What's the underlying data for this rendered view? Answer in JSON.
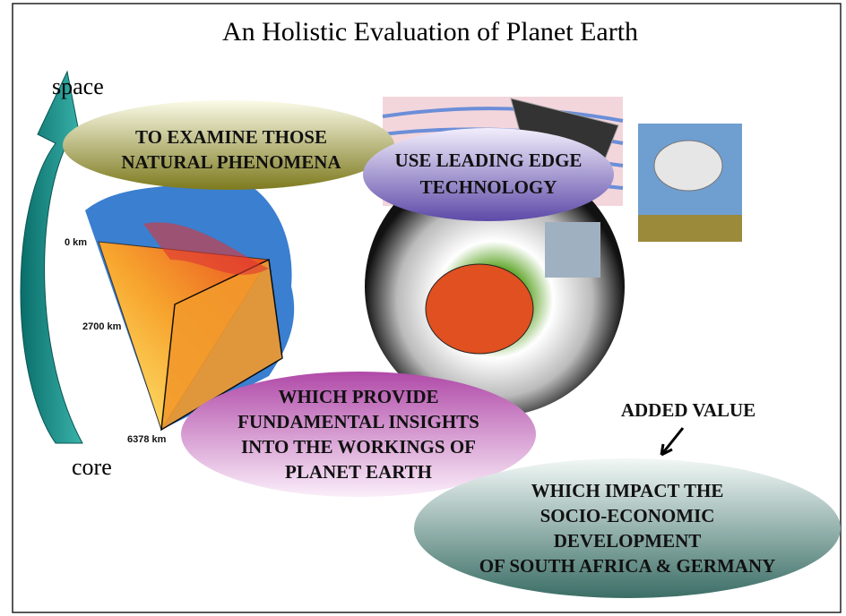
{
  "title": "An Holistic Evaluation of Planet Earth",
  "axis_labels": {
    "top": "space",
    "bottom": "core"
  },
  "depth_labels": [
    "0 km",
    "2700 km",
    "6378 km"
  ],
  "ellipses": [
    {
      "lines": [
        "TO EXAMINE THOSE",
        "NATURAL PHENOMENA"
      ]
    },
    {
      "lines": [
        "USE LEADING EDGE",
        "TECHNOLOGY"
      ]
    },
    {
      "lines": [
        "WHICH PROVIDE",
        "FUNDAMENTAL INSIGHTS",
        "INTO THE WORKINGS OF",
        "PLANET EARTH"
      ]
    },
    {
      "lines": [
        "WHICH IMPACT THE",
        "SOCIO-ECONOMIC",
        "DEVELOPMENT",
        "OF SOUTH AFRICA & GERMANY"
      ]
    }
  ],
  "added_value": "ADDED VALUE"
}
